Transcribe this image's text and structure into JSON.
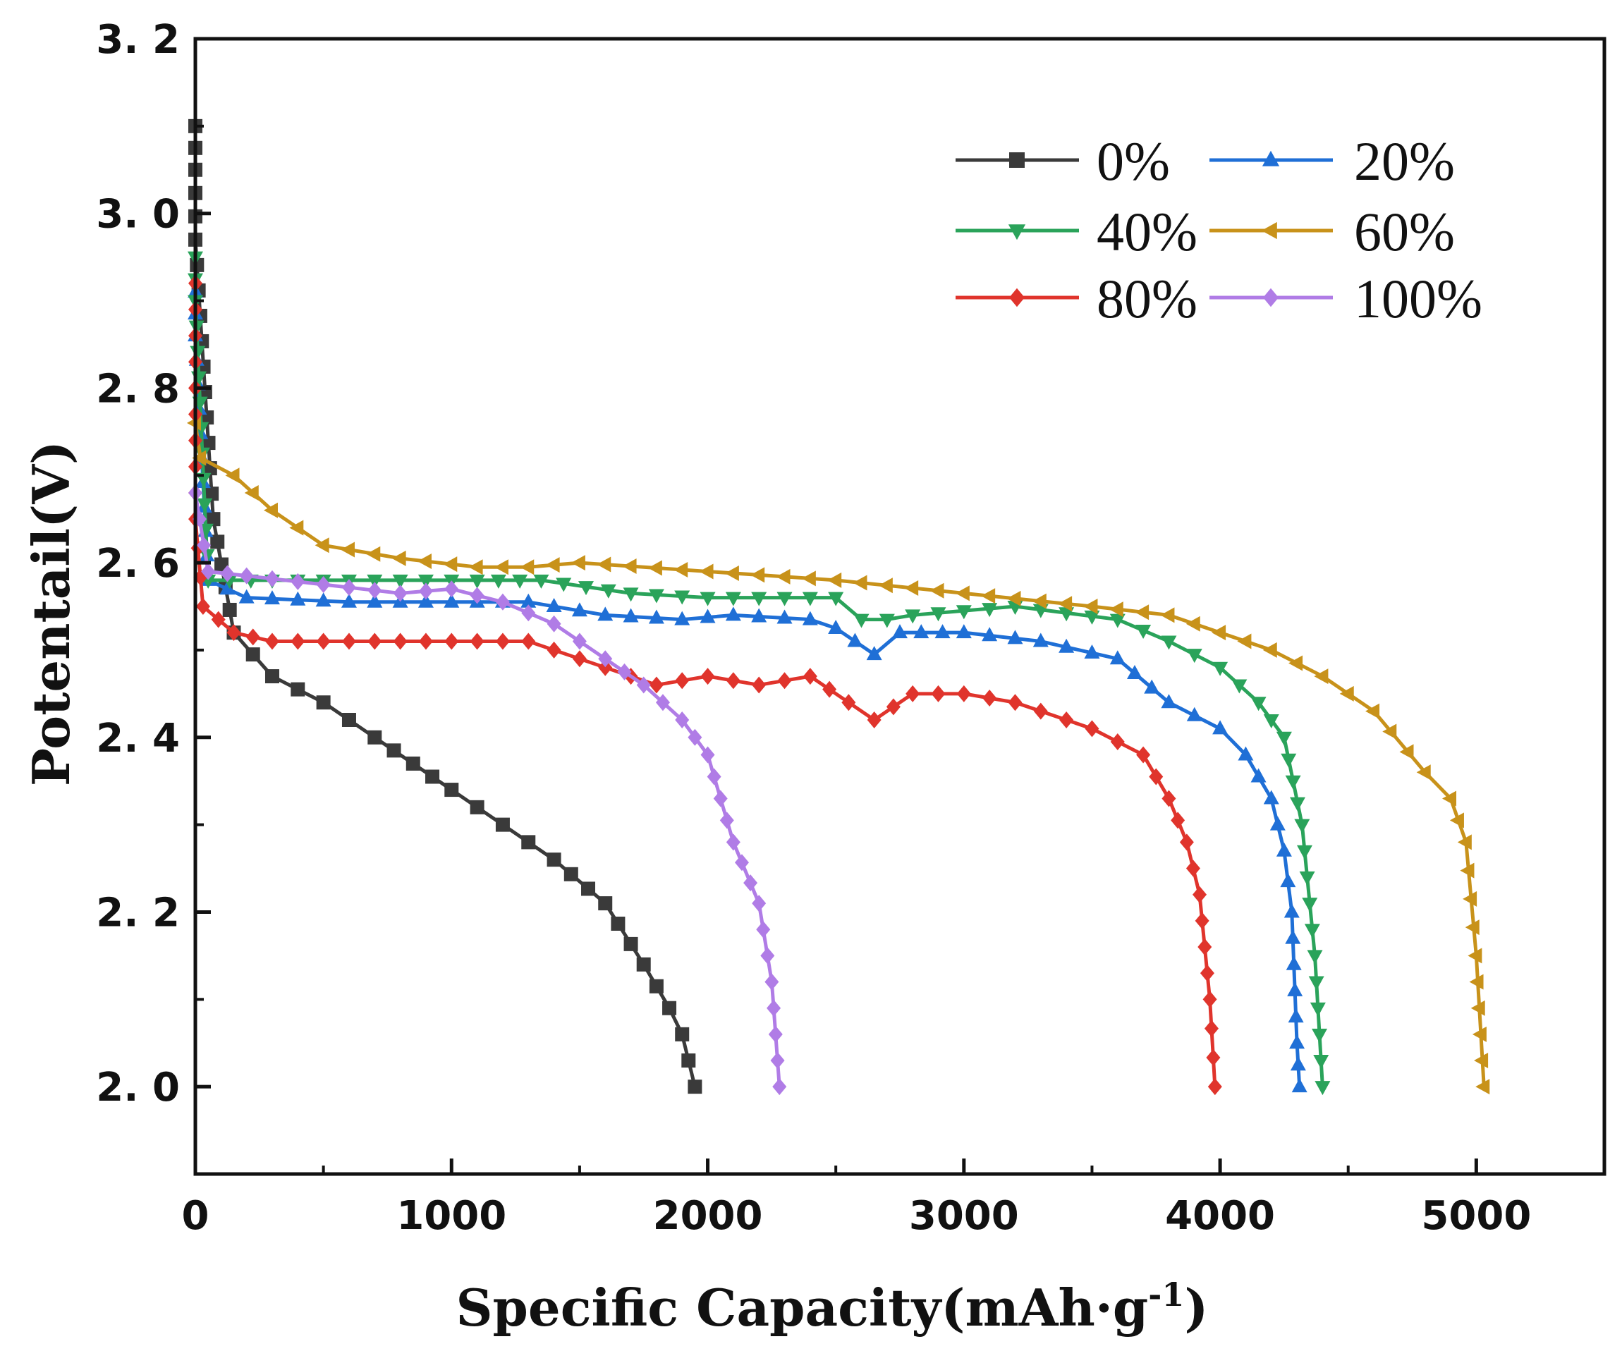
{
  "chart_data": {
    "type": "line",
    "xlabel": "Specific Capacity(mAh·g",
    "xlabel_sup": "-1",
    "xlabel_tail": ")",
    "ylabel": "Potentail(V)",
    "xlim": [
      0,
      5500
    ],
    "ylim": [
      1.9,
      3.2
    ],
    "x_ticks": [
      "0",
      "1000",
      "2000",
      "3000",
      "4000",
      "5000"
    ],
    "y_ticks": [
      "2.0",
      "2.2",
      "2.4",
      "2.6",
      "2.8",
      "3.0",
      "3.2"
    ],
    "legend_position": "top-right",
    "grid": false,
    "series": [
      {
        "name": "0%",
        "color": "#3a3a3a",
        "marker": "square",
        "points": [
          [
            0,
            3.1
          ],
          [
            0,
            3.05
          ],
          [
            0,
            2.97
          ],
          [
            70,
            2.65
          ],
          [
            150,
            2.52
          ],
          [
            300,
            2.47
          ],
          [
            500,
            2.44
          ],
          [
            700,
            2.4
          ],
          [
            1000,
            2.34
          ],
          [
            1200,
            2.3
          ],
          [
            1400,
            2.26
          ],
          [
            1600,
            2.21
          ],
          [
            1750,
            2.14
          ],
          [
            1850,
            2.09
          ],
          [
            1900,
            2.06
          ],
          [
            1950,
            2.0
          ]
        ]
      },
      {
        "name": "20%",
        "color": "#1f6fd6",
        "marker": "triangle-up",
        "points": [
          [
            0,
            2.91
          ],
          [
            0,
            2.86
          ],
          [
            50,
            2.58
          ],
          [
            200,
            2.56
          ],
          [
            600,
            2.555
          ],
          [
            1000,
            2.555
          ],
          [
            1300,
            2.555
          ],
          [
            1600,
            2.54
          ],
          [
            1900,
            2.535
          ],
          [
            2100,
            2.54
          ],
          [
            2400,
            2.535
          ],
          [
            2500,
            2.525
          ],
          [
            2650,
            2.495
          ],
          [
            2750,
            2.52
          ],
          [
            3000,
            2.52
          ],
          [
            3300,
            2.51
          ],
          [
            3600,
            2.49
          ],
          [
            3800,
            2.44
          ],
          [
            4000,
            2.41
          ],
          [
            4100,
            2.38
          ],
          [
            4200,
            2.33
          ],
          [
            4250,
            2.27
          ],
          [
            4280,
            2.2
          ],
          [
            4300,
            2.05
          ],
          [
            4310,
            2.0
          ]
        ]
      },
      {
        "name": "40%",
        "color": "#2aa35a",
        "marker": "triangle-down",
        "points": [
          [
            0,
            2.95
          ],
          [
            0,
            2.9
          ],
          [
            50,
            2.58
          ],
          [
            300,
            2.58
          ],
          [
            700,
            2.58
          ],
          [
            1100,
            2.58
          ],
          [
            1350,
            2.58
          ],
          [
            1700,
            2.565
          ],
          [
            2000,
            2.56
          ],
          [
            2300,
            2.56
          ],
          [
            2500,
            2.56
          ],
          [
            2600,
            2.535
          ],
          [
            2700,
            2.535
          ],
          [
            2800,
            2.54
          ],
          [
            3200,
            2.55
          ],
          [
            3600,
            2.535
          ],
          [
            3800,
            2.51
          ],
          [
            4000,
            2.48
          ],
          [
            4150,
            2.44
          ],
          [
            4250,
            2.4
          ],
          [
            4320,
            2.3
          ],
          [
            4370,
            2.15
          ],
          [
            4400,
            2.0
          ]
        ]
      },
      {
        "name": "60%",
        "color": "#c8921a",
        "marker": "triangle-left",
        "points": [
          [
            0,
            2.76
          ],
          [
            20,
            2.72
          ],
          [
            150,
            2.7
          ],
          [
            300,
            2.66
          ],
          [
            500,
            2.62
          ],
          [
            800,
            2.605
          ],
          [
            1100,
            2.595
          ],
          [
            1300,
            2.595
          ],
          [
            1500,
            2.6
          ],
          [
            2000,
            2.59
          ],
          [
            2500,
            2.58
          ],
          [
            3000,
            2.565
          ],
          [
            3500,
            2.55
          ],
          [
            3800,
            2.54
          ],
          [
            4200,
            2.5
          ],
          [
            4400,
            2.47
          ],
          [
            4600,
            2.43
          ],
          [
            4800,
            2.36
          ],
          [
            4900,
            2.33
          ],
          [
            4960,
            2.28
          ],
          [
            5000,
            2.15
          ],
          [
            5030,
            2.0
          ]
        ]
      },
      {
        "name": "80%",
        "color": "#e0342c",
        "marker": "diamond",
        "points": [
          [
            0,
            2.92
          ],
          [
            0,
            2.65
          ],
          [
            30,
            2.55
          ],
          [
            150,
            2.52
          ],
          [
            300,
            2.51
          ],
          [
            700,
            2.51
          ],
          [
            1000,
            2.51
          ],
          [
            1300,
            2.51
          ],
          [
            1500,
            2.49
          ],
          [
            1800,
            2.46
          ],
          [
            2000,
            2.47
          ],
          [
            2200,
            2.46
          ],
          [
            2400,
            2.47
          ],
          [
            2550,
            2.44
          ],
          [
            2650,
            2.42
          ],
          [
            2800,
            2.45
          ],
          [
            3000,
            2.45
          ],
          [
            3200,
            2.44
          ],
          [
            3500,
            2.41
          ],
          [
            3700,
            2.38
          ],
          [
            3800,
            2.33
          ],
          [
            3870,
            2.28
          ],
          [
            3920,
            2.22
          ],
          [
            3960,
            2.1
          ],
          [
            3980,
            2.0
          ]
        ]
      },
      {
        "name": "100%",
        "color": "#b07ce6",
        "marker": "diamond",
        "points": [
          [
            0,
            2.68
          ],
          [
            50,
            2.59
          ],
          [
            200,
            2.585
          ],
          [
            500,
            2.575
          ],
          [
            800,
            2.565
          ],
          [
            1000,
            2.57
          ],
          [
            1200,
            2.555
          ],
          [
            1400,
            2.53
          ],
          [
            1600,
            2.49
          ],
          [
            1750,
            2.46
          ],
          [
            1900,
            2.42
          ],
          [
            2000,
            2.38
          ],
          [
            2100,
            2.28
          ],
          [
            2200,
            2.21
          ],
          [
            2250,
            2.12
          ],
          [
            2280,
            2.0
          ]
        ]
      }
    ]
  }
}
